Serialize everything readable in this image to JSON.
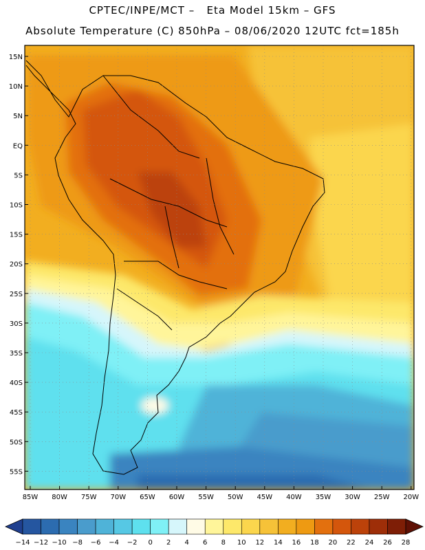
{
  "header": {
    "line1": "CPTEC/INPE/MCT –   Eta Model 15km – GFS",
    "line2": "Absolute Temperature (C) 850hPa – 08/06/2020 12UTC fct=185h"
  },
  "map": {
    "lat_labels": [
      "15N",
      "10N",
      "5N",
      "EQ",
      "5S",
      "10S",
      "15S",
      "20S",
      "25S",
      "30S",
      "35S",
      "40S",
      "45S",
      "50S",
      "55S"
    ],
    "lon_labels": [
      "85W",
      "80W",
      "75W",
      "70W",
      "65W",
      "60W",
      "55W",
      "50W",
      "45W",
      "40W",
      "35W",
      "30W",
      "25W",
      "20W"
    ]
  },
  "colorbar": {
    "labels": [
      "-14",
      "-12",
      "-10",
      "-8",
      "-6",
      "-4",
      "-2",
      "0",
      "2",
      "4",
      "6",
      "8",
      "10",
      "12",
      "14",
      "16",
      "18",
      "20",
      "22",
      "24",
      "26",
      "28"
    ],
    "colors": [
      "#1f3f8f",
      "#2556a0",
      "#2c6cb0",
      "#3a84c0",
      "#4a9ccc",
      "#4fb3d8",
      "#56c8e4",
      "#5ee0ee",
      "#7ff0f6",
      "#d6f6fb",
      "#fffbe6",
      "#fff59a",
      "#fde86a",
      "#fbd64d",
      "#f6c238",
      "#f2ae20",
      "#ee9a12",
      "#e3700e",
      "#d4560c",
      "#bc420a",
      "#9e2e08",
      "#7e1e06",
      "#5e1004"
    ]
  }
}
